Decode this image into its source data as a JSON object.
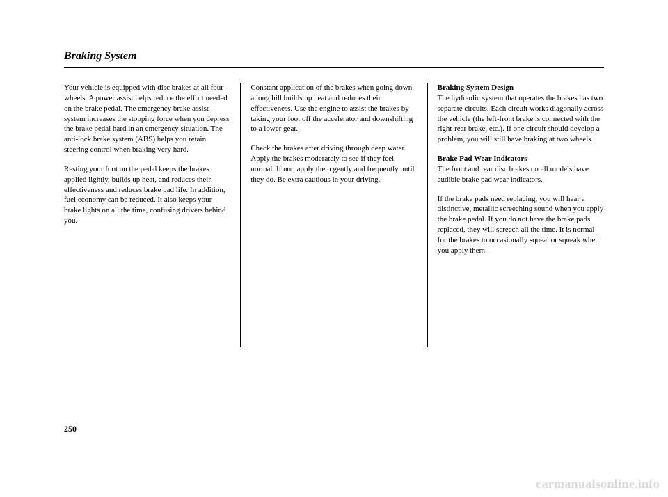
{
  "title": "Braking System",
  "pageNumber": "250",
  "watermark": "carmanualsonline.info",
  "col1": {
    "p1": "Your vehicle is equipped with disc brakes at all four wheels. A power assist helps reduce the effort needed on the brake pedal. The emergency brake assist system increases the stopping force when you depress the brake pedal hard in an emergency situation. The anti-lock brake system (ABS) helps you retain steering control when braking very hard.",
    "p2": "Resting your foot on the pedal keeps the brakes applied lightly, builds up heat, and reduces their effectiveness and reduces brake pad life. In addition, fuel economy can be reduced. It also keeps your brake lights on all the time, confusing drivers behind you."
  },
  "col2": {
    "p1": "Constant application of the brakes when going down a long hill builds up heat and reduces their effectiveness. Use the engine to assist the brakes by taking your foot off the accelerator and downshifting to a lower gear.",
    "p2": "Check the brakes after driving through deep water. Apply the brakes moderately to see if they feel normal. If not, apply them gently and frequently until they do. Be extra cautious in your driving."
  },
  "col3": {
    "h1": "Braking System Design",
    "p1": "The hydraulic system that operates the brakes has two separate circuits. Each circuit works diagonally across the vehicle (the left-front brake is connected with the right-rear brake, etc.). If one circuit should develop a problem, you will still have braking at two wheels.",
    "h2": "Brake Pad Wear Indicators",
    "p2": "The front and rear disc brakes on all models have audible brake pad wear indicators.",
    "p3": "If the brake pads need replacing, you will hear a distinctive, metallic screeching sound when you apply the brake pedal. If you do not have the brake pads replaced, they will screech all the time. It is normal for the brakes to occasionally squeal or squeak when you apply them."
  }
}
